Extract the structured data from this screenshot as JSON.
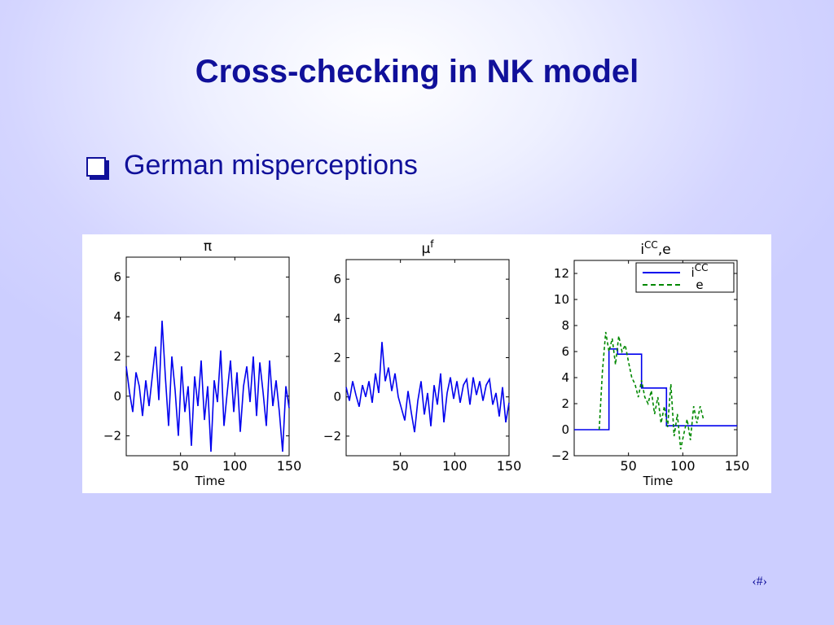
{
  "slide": {
    "title": "Cross-checking in NK model",
    "bullet": "German misperceptions",
    "page_number": "‹#›"
  },
  "colors": {
    "title": "#10109a",
    "series_blue": "#0000ee",
    "series_green": "#008800"
  },
  "chart_data": [
    {
      "type": "line",
      "title": "π",
      "xlabel": "Time",
      "xlim": [
        0,
        150
      ],
      "ylim": [
        -3,
        7
      ],
      "xticks": [
        50,
        100,
        150
      ],
      "yticks": [
        -2,
        0,
        2,
        4,
        6
      ],
      "series": [
        {
          "color": "#0000ee",
          "x": [
            0,
            3,
            6,
            9,
            12,
            15,
            18,
            21,
            24,
            27,
            30,
            33,
            36,
            39,
            42,
            45,
            48,
            51,
            54,
            57,
            60,
            63,
            66,
            69,
            72,
            75,
            78,
            81,
            84,
            87,
            90,
            93,
            96,
            99,
            102,
            105,
            108,
            111,
            114,
            117,
            120,
            123,
            126,
            129,
            132,
            135,
            138,
            141,
            144,
            147,
            150
          ],
          "y": [
            1.5,
            0.2,
            -0.8,
            1.2,
            0.5,
            -1.0,
            0.8,
            -0.5,
            1.0,
            2.5,
            -0.2,
            3.8,
            1.0,
            -1.5,
            2.0,
            0.3,
            -2.0,
            1.5,
            -0.8,
            0.5,
            -2.5,
            1.0,
            -0.5,
            1.8,
            -1.2,
            0.5,
            -2.8,
            0.8,
            -0.3,
            2.3,
            -1.5,
            0.2,
            1.8,
            -0.8,
            1.2,
            -1.8,
            0.5,
            1.5,
            -0.3,
            2.0,
            -1.0,
            1.7,
            0.2,
            -1.5,
            1.8,
            -0.5,
            0.8,
            -0.8,
            -2.8,
            0.5,
            -0.6
          ]
        }
      ]
    },
    {
      "type": "line",
      "title": "μ^f",
      "xlabel": "",
      "xlim": [
        0,
        150
      ],
      "ylim": [
        -3,
        7
      ],
      "xticks": [
        50,
        100,
        150
      ],
      "yticks": [
        -2,
        0,
        2,
        4,
        6
      ],
      "series": [
        {
          "color": "#0000ee",
          "x": [
            0,
            3,
            6,
            9,
            12,
            15,
            18,
            21,
            24,
            27,
            30,
            33,
            36,
            39,
            42,
            45,
            48,
            51,
            54,
            57,
            60,
            63,
            66,
            69,
            72,
            75,
            78,
            81,
            84,
            87,
            90,
            93,
            96,
            99,
            102,
            105,
            108,
            111,
            114,
            117,
            120,
            123,
            126,
            129,
            132,
            135,
            138,
            141,
            144,
            147,
            150
          ],
          "y": [
            0.5,
            -0.2,
            0.8,
            0.1,
            -0.5,
            0.6,
            0.0,
            0.8,
            -0.3,
            1.2,
            0.2,
            2.8,
            0.8,
            1.5,
            0.3,
            1.2,
            0.0,
            -0.6,
            -1.2,
            0.3,
            -0.8,
            -1.8,
            -0.2,
            0.8,
            -0.9,
            0.2,
            -1.5,
            0.6,
            -0.4,
            1.2,
            -1.3,
            0.2,
            1.0,
            -0.1,
            0.8,
            -0.3,
            0.6,
            0.9,
            -0.4,
            1.0,
            0.1,
            0.8,
            -0.2,
            0.6,
            0.9,
            -0.4,
            0.2,
            -1.0,
            0.5,
            -1.3,
            -0.3
          ]
        }
      ]
    },
    {
      "type": "line",
      "title": "i^CC,e",
      "xlabel": "Time",
      "xlim": [
        0,
        150
      ],
      "ylim": [
        -2,
        13
      ],
      "xticks": [
        50,
        100,
        150
      ],
      "yticks": [
        -2,
        0,
        2,
        4,
        6,
        8,
        10,
        12
      ],
      "legend_position": "top-right",
      "series": [
        {
          "name": "i^CC",
          "color": "#0000ee",
          "style": "solid",
          "x": [
            0,
            32,
            32,
            40,
            40,
            62,
            62,
            85,
            85,
            98,
            98,
            150
          ],
          "y": [
            0,
            0,
            6.2,
            6.2,
            5.8,
            5.8,
            3.2,
            3.2,
            0.3,
            0.3,
            0.3,
            0.3
          ]
        },
        {
          "name": "e",
          "color": "#008800",
          "style": "dashed",
          "x": [
            23,
            26,
            29,
            32,
            35,
            38,
            41,
            44,
            47,
            50,
            53,
            56,
            59,
            62,
            65,
            68,
            71,
            74,
            77,
            80,
            83,
            86,
            89,
            92,
            95,
            98,
            101,
            104,
            107,
            110,
            113,
            116,
            119
          ],
          "y": [
            0,
            4.5,
            7.5,
            6.0,
            7.0,
            5.0,
            7.2,
            6.0,
            6.5,
            5.2,
            4.0,
            3.5,
            2.5,
            3.8,
            2.5,
            2.0,
            3.0,
            1.2,
            2.5,
            0.5,
            1.8,
            0.2,
            3.5,
            -0.5,
            1.2,
            -1.5,
            -0.3,
            0.8,
            -0.8,
            1.8,
            0.5,
            1.8,
            0.8
          ]
        }
      ]
    }
  ]
}
